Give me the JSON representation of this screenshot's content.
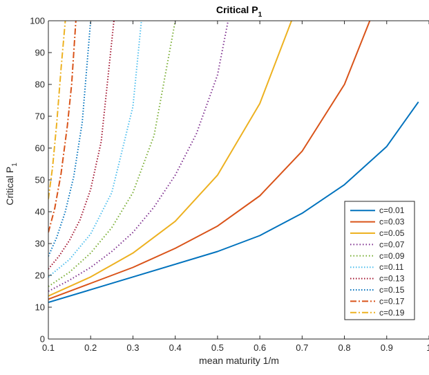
{
  "chart_data": {
    "type": "line",
    "title": "Critical P",
    "title_subscript": "1",
    "xlabel": "mean maturity 1/m",
    "ylabel": "Critical P",
    "ylabel_subscript": "1",
    "xlim": [
      0.1,
      1
    ],
    "ylim": [
      0,
      100
    ],
    "xticks": [
      "0.1",
      "0.2",
      "0.3",
      "0.4",
      "0.5",
      "0.6",
      "0.7",
      "0.8",
      "0.9",
      "1"
    ],
    "yticks": [
      "0",
      "10",
      "20",
      "30",
      "40",
      "50",
      "60",
      "70",
      "80",
      "90",
      "100"
    ],
    "grid": false,
    "legend_position": "lower-right",
    "series": [
      {
        "name": "c=0.01",
        "color": "#0072BD",
        "style": "solid",
        "x": [
          0.1,
          0.2,
          0.3,
          0.4,
          0.5,
          0.6,
          0.7,
          0.8,
          0.9,
          0.975
        ],
        "y": [
          11.5,
          15.5,
          19.5,
          23.5,
          27.5,
          32.5,
          39.5,
          48.5,
          60.5,
          74.5
        ]
      },
      {
        "name": "c=0.03",
        "color": "#D95319",
        "style": "solid",
        "x": [
          0.1,
          0.2,
          0.3,
          0.4,
          0.5,
          0.6,
          0.7,
          0.8,
          0.86
        ],
        "y": [
          12.5,
          17.5,
          22.5,
          28.5,
          35.5,
          45,
          59,
          80,
          100
        ]
      },
      {
        "name": "c=0.05",
        "color": "#EDB120",
        "style": "solid",
        "x": [
          0.1,
          0.2,
          0.3,
          0.4,
          0.5,
          0.6,
          0.675
        ],
        "y": [
          13.5,
          19.5,
          27,
          37,
          51.5,
          74,
          100
        ]
      },
      {
        "name": "c=0.07",
        "color": "#7E2F8E",
        "style": "dotted",
        "x": [
          0.1,
          0.15,
          0.2,
          0.25,
          0.3,
          0.35,
          0.4,
          0.45,
          0.5,
          0.525
        ],
        "y": [
          15,
          18.5,
          22.5,
          27.5,
          33.5,
          41.5,
          51.5,
          64.5,
          83,
          100
        ]
      },
      {
        "name": "c=0.09",
        "color": "#77AC30",
        "style": "dotted",
        "x": [
          0.1,
          0.15,
          0.2,
          0.25,
          0.3,
          0.35,
          0.4
        ],
        "y": [
          16.5,
          21,
          27,
          35,
          46,
          64,
          100
        ]
      },
      {
        "name": "c=0.11",
        "color": "#4DBEEE",
        "style": "dashdot-dots",
        "x": [
          0.1,
          0.15,
          0.2,
          0.25,
          0.3,
          0.32
        ],
        "y": [
          19.5,
          25,
          33,
          46,
          73,
          100
        ]
      },
      {
        "name": "c=0.13",
        "color": "#A2142F",
        "style": "dashdot-dots",
        "x": [
          0.1,
          0.125,
          0.15,
          0.175,
          0.2,
          0.225,
          0.255
        ],
        "y": [
          22,
          26,
          31,
          37.5,
          47,
          62,
          100
        ]
      },
      {
        "name": "c=0.15",
        "color": "#0072BD",
        "style": "dashdot-dots",
        "x": [
          0.1,
          0.12,
          0.14,
          0.16,
          0.18,
          0.2
        ],
        "y": [
          26,
          32,
          40,
          51,
          68,
          100
        ]
      },
      {
        "name": "c=0.17",
        "color": "#D95319",
        "style": "dashdot",
        "x": [
          0.1,
          0.115,
          0.13,
          0.145,
          0.155,
          0.165
        ],
        "y": [
          33.5,
          41,
          52,
          67,
          80,
          100
        ]
      },
      {
        "name": "c=0.19",
        "color": "#EDB120",
        "style": "dashdot",
        "x": [
          0.1,
          0.11,
          0.12,
          0.13,
          0.14
        ],
        "y": [
          44,
          54,
          68,
          85,
          100
        ]
      }
    ]
  }
}
